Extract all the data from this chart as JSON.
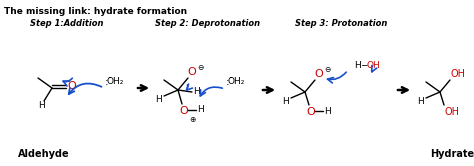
{
  "title": "The missing link: hydrate formation",
  "bg_color": "#ffffff",
  "step1_label": "Step 1:Addition",
  "step2_label": "Step 2: Deprotonation",
  "step3_label": "Step 3: Protonation",
  "bottom_left": "Aldehyde",
  "bottom_right": "Hydrate",
  "black": "#000000",
  "red": "#cc0000",
  "blue": "#1a4fcc",
  "fig_width": 4.74,
  "fig_height": 1.66,
  "dpi": 100
}
